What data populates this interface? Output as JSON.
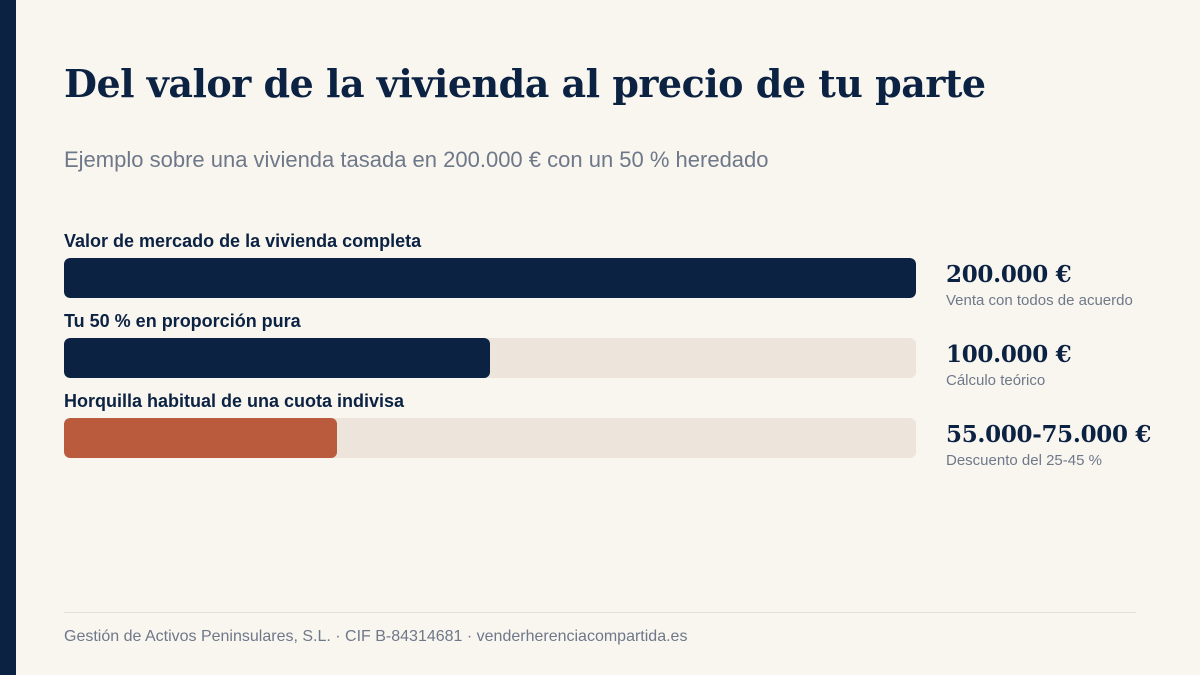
{
  "title": "Del valor de la vivienda al precio de tu parte",
  "subtitle": "Ejemplo sobre una vivienda tasada en 200.000 € con un 50 % heredado",
  "colors": {
    "navy": "#0c2242",
    "terracotta": "#b95b3c",
    "track": "#ede5dc",
    "background": "#f9f6f0",
    "muted": "#6e7889",
    "divider": "#e4dfd8"
  },
  "chart_data": {
    "type": "bar",
    "orientation": "horizontal",
    "xlim": [
      0,
      200000
    ],
    "unit": "€",
    "categories": [
      "Valor de mercado de la vivienda completa",
      "Tu 50 % en proporción pura",
      "Horquilla habitual de una cuota indivisa"
    ],
    "values": [
      200000,
      100000,
      64000
    ],
    "value_labels": [
      "200.000 €",
      "100.000 €",
      "55.000-75.000 €"
    ],
    "notes": [
      "Venta con todos de acuerdo",
      "Cálculo teórico",
      "Descuento del 25-45 %"
    ],
    "bar_colors": [
      "#0c2242",
      "#0c2242",
      "#b95b3c"
    ],
    "grid": false,
    "legend": "none"
  },
  "footer": {
    "text": "Gestión de Activos Peninsulares, S.L. · CIF B-84314681 · venderherenciacompartida.es"
  }
}
